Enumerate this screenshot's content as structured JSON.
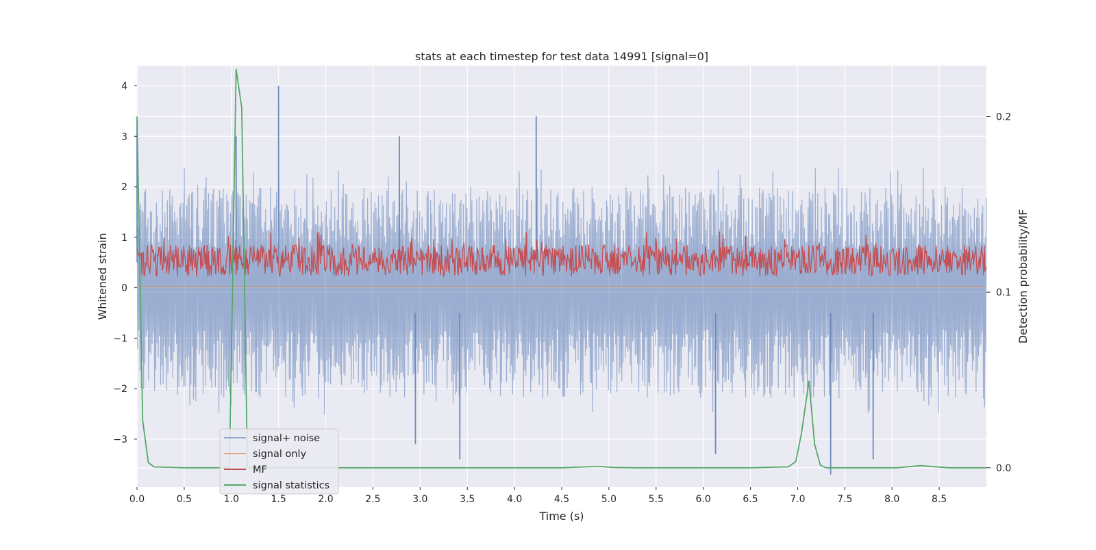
{
  "chart_data": {
    "type": "line",
    "title": "stats at each timestep for test data 14991 [signal=0]",
    "xlabel": "Time (s)",
    "ylabel": "Whitened strain",
    "y2label": "Detection probability/MF",
    "xlim": [
      0,
      9
    ],
    "ylim": [
      -3.95,
      4.4
    ],
    "y2lim": [
      -0.011,
      0.229
    ],
    "x_ticks": [
      "0.0",
      "0.5",
      "1.0",
      "1.5",
      "2.0",
      "2.5",
      "3.0",
      "3.5",
      "4.0",
      "4.5",
      "5.0",
      "5.5",
      "6.0",
      "6.5",
      "7.0",
      "7.5",
      "8.0",
      "8.5"
    ],
    "y_ticks": [
      "4",
      "3",
      "2",
      "1",
      "0",
      "−1",
      "−2",
      "−3"
    ],
    "y2_ticks": [
      "0.2",
      "0.1",
      "0.0"
    ],
    "grid": true,
    "legend_position": "lower-left",
    "colors": {
      "background": "#eaeaf2",
      "grid": "#ffffff",
      "noise": "#4c72b0",
      "signal": "#dd8452",
      "mf": "#c44e52",
      "stats": "#55a868"
    },
    "series": [
      {
        "name": "signal+ noise",
        "axis": "left",
        "style": "dense-noise",
        "color": "#4c72b0",
        "upper_envelope_typical": [
          1.3,
          2.0
        ],
        "lower_envelope_typical": [
          -1.5,
          -2.2
        ],
        "peaks": [
          {
            "x": 1.5,
            "y": 4.0
          },
          {
            "x": 4.23,
            "y": 3.4
          },
          {
            "x": 0.0,
            "y": 3.3
          },
          {
            "x": 1.05,
            "y": 3.0
          },
          {
            "x": 2.78,
            "y": 3.0
          }
        ],
        "troughs": [
          {
            "x": 2.95,
            "y": -3.1
          },
          {
            "x": 3.42,
            "y": -3.4
          },
          {
            "x": 6.13,
            "y": -3.3
          },
          {
            "x": 7.35,
            "y": -3.7
          },
          {
            "x": 7.8,
            "y": -3.4
          }
        ]
      },
      {
        "name": "signal only",
        "axis": "left",
        "color": "#dd8452",
        "x": [
          0,
          9
        ],
        "y": [
          0.02,
          0.02
        ]
      },
      {
        "name": "MF",
        "axis": "right",
        "style": "dense-noise",
        "color": "#c44e52",
        "baseline": 0.109,
        "typical_max": 0.127,
        "max": 0.135
      },
      {
        "name": "signal statistics",
        "axis": "right",
        "color": "#55a868",
        "x": [
          0,
          0.06,
          0.12,
          0.18,
          0.3,
          0.5,
          0.9,
          0.98,
          1.05,
          1.11,
          1.17,
          1.25,
          1.5,
          3.0,
          4.5,
          4.75,
          4.9,
          5.05,
          5.3,
          6.5,
          6.9,
          6.98,
          7.04,
          7.12,
          7.18,
          7.24,
          7.3,
          7.5,
          8.05,
          8.3,
          8.6,
          9.0
        ],
        "y": [
          0.2,
          0.027,
          0.003,
          0.0005,
          0.0003,
          0.0,
          0.0,
          0.0,
          0.227,
          0.205,
          0.0,
          0.0,
          0.0,
          0.0,
          0.0,
          0.0005,
          0.0007,
          0.0002,
          0.0,
          0.0,
          0.0005,
          0.0035,
          0.0195,
          0.0495,
          0.0135,
          0.0015,
          0.0,
          0.0,
          0.0,
          0.0012,
          0.0,
          0.0
        ]
      }
    ]
  }
}
